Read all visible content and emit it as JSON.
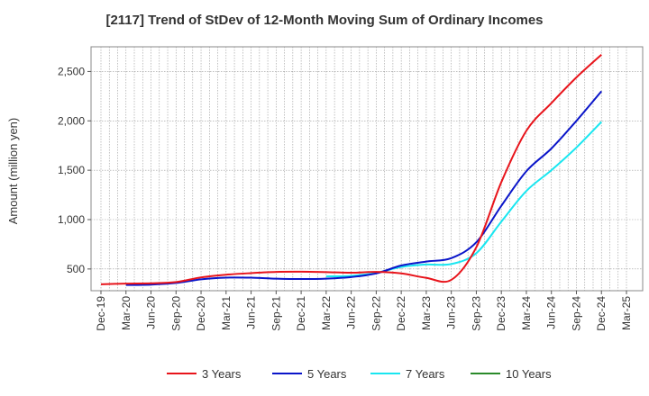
{
  "chart_data": {
    "type": "line",
    "title": "[2117]  Trend of StDev of 12-Month Moving Sum of Ordinary Incomes",
    "xlabel": "",
    "ylabel": "Amount (million yen)",
    "x": [
      "Dec-19",
      "Mar-20",
      "Jun-20",
      "Sep-20",
      "Dec-20",
      "Mar-21",
      "Jun-21",
      "Sep-21",
      "Dec-21",
      "Mar-22",
      "Jun-22",
      "Sep-22",
      "Dec-22",
      "Mar-23",
      "Jun-23",
      "Sep-23",
      "Dec-23",
      "Mar-24",
      "Jun-24",
      "Sep-24",
      "Dec-24"
    ],
    "x_ticks": [
      "Dec-19",
      "Mar-20",
      "Jun-20",
      "Sep-20",
      "Dec-20",
      "Mar-21",
      "Jun-21",
      "Sep-21",
      "Dec-21",
      "Mar-22",
      "Jun-22",
      "Sep-22",
      "Dec-22",
      "Mar-23",
      "Jun-23",
      "Sep-23",
      "Dec-23",
      "Mar-24",
      "Jun-24",
      "Sep-24",
      "Dec-24",
      "Mar-25"
    ],
    "ylim": [
      280,
      2750
    ],
    "y_ticks": [
      500,
      1000,
      1500,
      2000,
      2500
    ],
    "y_tick_labels": [
      "500",
      "1,000",
      "1,500",
      "2,000",
      "2,500"
    ],
    "grid": true,
    "legend_position": "bottom",
    "series": [
      {
        "name": "3 Years",
        "color": "#e8141b",
        "values": [
          345,
          352,
          355,
          368,
          415,
          442,
          458,
          470,
          472,
          468,
          462,
          470,
          455,
          410,
          390,
          720,
          1380,
          1900,
          2180,
          2440,
          2670
        ]
      },
      {
        "name": "5 Years",
        "color": "#0a15c9",
        "values": [
          null,
          338,
          342,
          358,
          395,
          412,
          412,
          402,
          398,
          402,
          418,
          455,
          535,
          575,
          610,
          770,
          1140,
          1490,
          1720,
          2000,
          2300
        ]
      },
      {
        "name": "7 Years",
        "color": "#19e6f0",
        "values": [
          null,
          null,
          null,
          null,
          null,
          null,
          null,
          null,
          null,
          425,
          430,
          460,
          520,
          545,
          550,
          660,
          980,
          1290,
          1500,
          1730,
          1990
        ]
      },
      {
        "name": "10 Years",
        "color": "#2a8a2a",
        "values": [
          null,
          null,
          null,
          null,
          null,
          null,
          null,
          null,
          null,
          null,
          null,
          null,
          null,
          null,
          null,
          null,
          null,
          null,
          null,
          null,
          null
        ]
      }
    ]
  }
}
